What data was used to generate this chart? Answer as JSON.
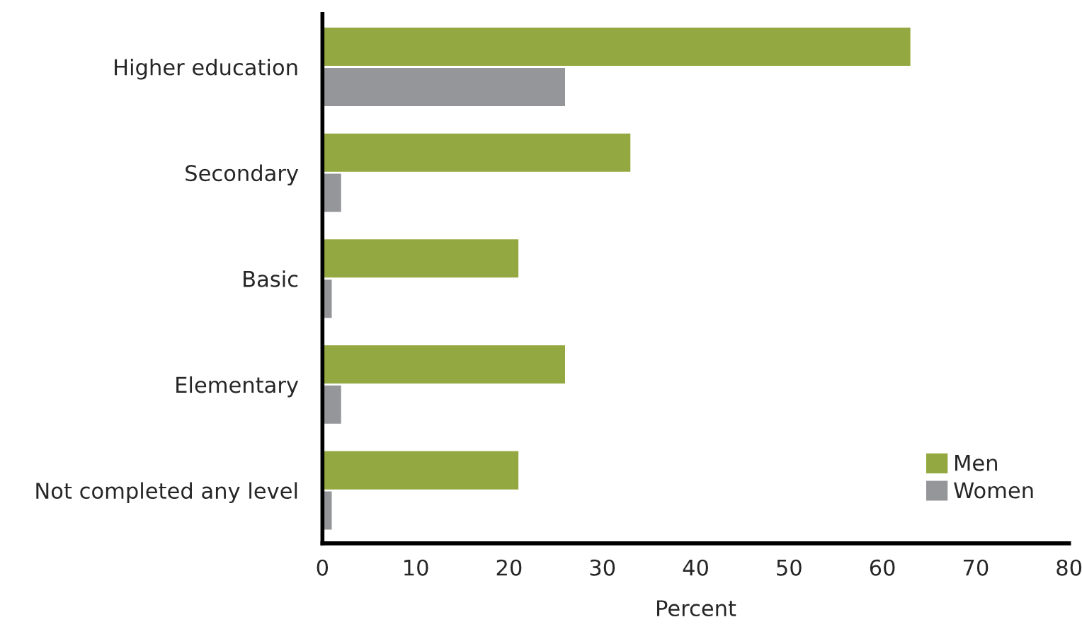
{
  "chart_data": {
    "type": "bar",
    "orientation": "horizontal",
    "xlabel": "Percent",
    "categories": [
      "Higher education",
      "Secondary",
      "Basic",
      "Elementary",
      "Not completed any level"
    ],
    "series": [
      {
        "name": "Men",
        "color": "#93a840",
        "values": [
          63,
          33,
          21,
          26,
          21
        ]
      },
      {
        "name": "Women",
        "color": "#959699",
        "values": [
          26,
          2,
          1,
          2,
          1
        ]
      }
    ],
    "xlim": [
      0,
      80
    ],
    "xticks": [
      0,
      10,
      20,
      30,
      40,
      50,
      60,
      70,
      80
    ],
    "grid": false,
    "legend": "bottom right"
  }
}
